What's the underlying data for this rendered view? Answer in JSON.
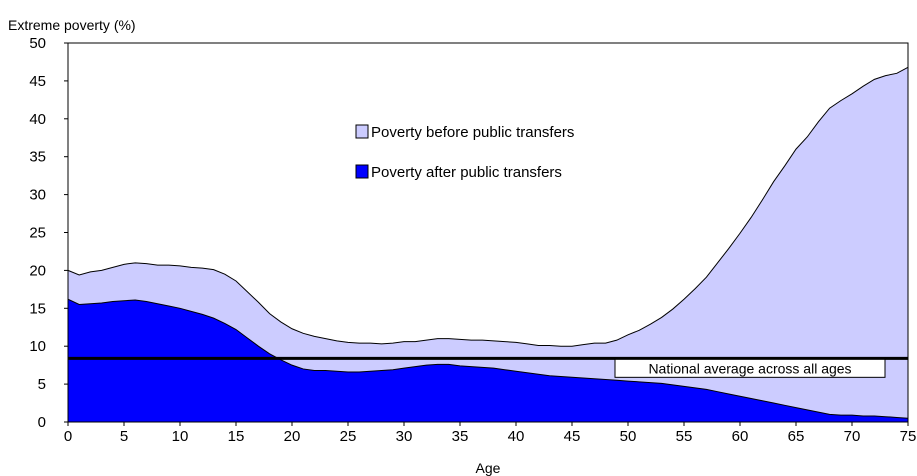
{
  "chart_data": {
    "type": "area",
    "ylabel": "Extreme poverty (%)",
    "xlabel": "Age",
    "xlim": [
      0,
      75
    ],
    "ylim": [
      0,
      50
    ],
    "x_ticks": [
      0,
      5,
      10,
      15,
      20,
      25,
      30,
      35,
      40,
      45,
      50,
      55,
      60,
      65,
      70,
      75
    ],
    "y_ticks": [
      0,
      5,
      10,
      15,
      20,
      25,
      30,
      35,
      40,
      45,
      50
    ],
    "grid": false,
    "legend_position": "top-center",
    "series": [
      {
        "name": "Poverty before public transfers",
        "color": "#ccccff",
        "x": [
          0,
          1,
          2,
          3,
          4,
          5,
          6,
          7,
          8,
          9,
          10,
          11,
          12,
          13,
          14,
          15,
          16,
          17,
          18,
          19,
          20,
          21,
          22,
          23,
          24,
          25,
          26,
          27,
          28,
          29,
          30,
          31,
          32,
          33,
          34,
          35,
          36,
          37,
          38,
          39,
          40,
          41,
          42,
          43,
          44,
          45,
          46,
          47,
          48,
          49,
          50,
          51,
          52,
          53,
          54,
          55,
          56,
          57,
          58,
          59,
          60,
          61,
          62,
          63,
          64,
          65,
          66,
          67,
          68,
          69,
          70,
          71,
          72,
          73,
          74,
          75
        ],
        "values": [
          20,
          19.4,
          19.8,
          20,
          20.4,
          20.8,
          21,
          20.9,
          20.7,
          20.7,
          20.6,
          20.4,
          20.3,
          20.1,
          19.5,
          18.6,
          17.2,
          15.8,
          14.3,
          13.2,
          12.3,
          11.7,
          11.3,
          11,
          10.7,
          10.5,
          10.4,
          10.4,
          10.3,
          10.4,
          10.6,
          10.6,
          10.8,
          11,
          11,
          10.9,
          10.8,
          10.8,
          10.7,
          10.6,
          10.5,
          10.3,
          10.1,
          10.1,
          10,
          10,
          10.2,
          10.4,
          10.4,
          10.8,
          11.5,
          12.1,
          12.9,
          13.8,
          14.9,
          16.2,
          17.6,
          19.1,
          21,
          22.9,
          24.9,
          27,
          29.3,
          31.7,
          33.8,
          36,
          37.6,
          39.6,
          41.4,
          42.4,
          43.3,
          44.3,
          45.2,
          45.7,
          46,
          46.8
        ]
      },
      {
        "name": "Poverty after public transfers",
        "color": "#0000ff",
        "x": [
          0,
          1,
          2,
          3,
          4,
          5,
          6,
          7,
          8,
          9,
          10,
          11,
          12,
          13,
          14,
          15,
          16,
          17,
          18,
          19,
          20,
          21,
          22,
          23,
          24,
          25,
          26,
          27,
          28,
          29,
          30,
          31,
          32,
          33,
          34,
          35,
          36,
          37,
          38,
          39,
          40,
          41,
          42,
          43,
          44,
          45,
          46,
          47,
          48,
          49,
          50,
          51,
          52,
          53,
          54,
          55,
          56,
          57,
          58,
          59,
          60,
          61,
          62,
          63,
          64,
          65,
          66,
          67,
          68,
          69,
          70,
          71,
          72,
          73,
          74,
          75
        ],
        "values": [
          16.2,
          15.5,
          15.6,
          15.7,
          15.9,
          16,
          16.1,
          15.9,
          15.6,
          15.3,
          15,
          14.6,
          14.2,
          13.7,
          13,
          12.2,
          11.1,
          10,
          9,
          8.2,
          7.5,
          7,
          6.8,
          6.8,
          6.7,
          6.6,
          6.6,
          6.7,
          6.8,
          6.9,
          7.1,
          7.3,
          7.5,
          7.6,
          7.6,
          7.4,
          7.3,
          7.2,
          7.1,
          6.9,
          6.7,
          6.5,
          6.3,
          6.1,
          6,
          5.9,
          5.8,
          5.7,
          5.6,
          5.5,
          5.4,
          5.3,
          5.2,
          5.1,
          4.9,
          4.7,
          4.5,
          4.3,
          4,
          3.7,
          3.4,
          3.1,
          2.8,
          2.5,
          2.2,
          1.9,
          1.6,
          1.3,
          1,
          0.9,
          0.9,
          0.8,
          0.8,
          0.7,
          0.6,
          0.5
        ]
      }
    ],
    "reference_line": {
      "label": "National average across all ages",
      "value": 8.4,
      "color": "#000000"
    }
  }
}
